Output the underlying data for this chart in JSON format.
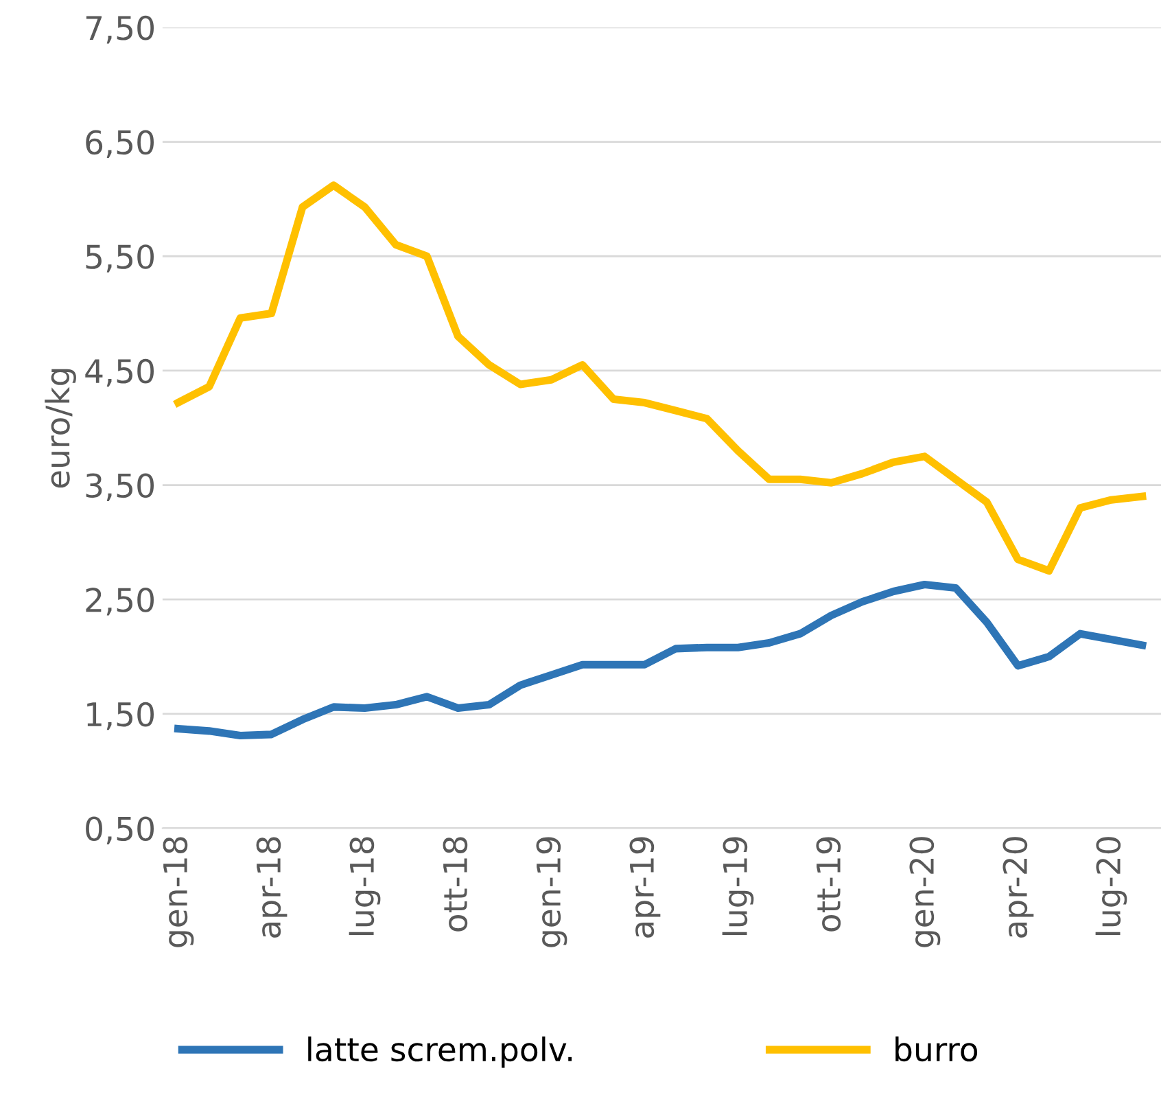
{
  "chart_data": {
    "type": "line",
    "ylabel": "euro/kg",
    "categories": [
      "gen-18",
      null,
      null,
      "apr-18",
      null,
      null,
      "lug-18",
      null,
      null,
      "ott-18",
      null,
      null,
      "gen-19",
      null,
      null,
      "apr-19",
      null,
      null,
      "lug-19",
      null,
      null,
      "ott-19",
      null,
      null,
      "gen-20",
      null,
      null,
      "apr-20",
      null,
      null,
      "lug-20",
      null
    ],
    "series": [
      {
        "name": "latte screm.polv.",
        "color": "#2e75b6",
        "values": [
          1.37,
          1.35,
          1.31,
          1.32,
          1.45,
          1.56,
          1.55,
          1.58,
          1.65,
          1.55,
          1.58,
          1.75,
          1.84,
          1.93,
          1.93,
          1.93,
          2.07,
          2.08,
          2.08,
          2.12,
          2.2,
          2.36,
          2.48,
          2.57,
          2.63,
          2.6,
          2.3,
          1.92,
          2.0,
          2.2,
          2.15,
          2.1
        ]
      },
      {
        "name": "burro",
        "color": "#ffc000",
        "values": [
          4.22,
          4.36,
          4.96,
          5.0,
          5.93,
          6.12,
          5.93,
          5.6,
          5.5,
          4.8,
          4.55,
          4.38,
          4.42,
          4.55,
          4.25,
          4.22,
          4.15,
          4.08,
          3.8,
          3.55,
          3.55,
          3.52,
          3.6,
          3.7,
          3.75,
          3.55,
          3.35,
          2.85,
          2.75,
          3.3,
          3.37,
          3.4
        ]
      }
    ],
    "ylim": [
      0.5,
      7.5
    ],
    "yticks": [
      {
        "value": 0.5,
        "label": "0,50"
      },
      {
        "value": 1.5,
        "label": "1,50"
      },
      {
        "value": 2.5,
        "label": "2,50"
      },
      {
        "value": 3.5,
        "label": "3,50"
      },
      {
        "value": 4.5,
        "label": "4,50"
      },
      {
        "value": 5.5,
        "label": "5,50"
      },
      {
        "value": 6.5,
        "label": "6,50"
      },
      {
        "value": 7.5,
        "label": "7,50"
      }
    ],
    "grid": "y",
    "legend": "bottom"
  }
}
